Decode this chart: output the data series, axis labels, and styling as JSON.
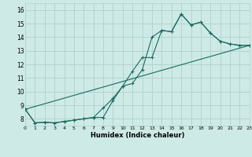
{
  "title": "",
  "xlabel": "Humidex (Indice chaleur)",
  "xlim": [
    0,
    23
  ],
  "ylim": [
    7.5,
    16.5
  ],
  "yticks": [
    8,
    9,
    10,
    11,
    12,
    13,
    14,
    15,
    16
  ],
  "xticks": [
    0,
    1,
    2,
    3,
    4,
    5,
    6,
    7,
    8,
    9,
    10,
    11,
    12,
    13,
    14,
    15,
    16,
    17,
    18,
    19,
    20,
    21,
    22,
    23
  ],
  "bg_color": "#ceeae6",
  "grid_color": "#b2d4d0",
  "line_color": "#1a6b5e",
  "line1_x": [
    0,
    1,
    2,
    3,
    4,
    5,
    6,
    7,
    8,
    9,
    10,
    11,
    12,
    13,
    14,
    15,
    16,
    17,
    18,
    19,
    20,
    21,
    22,
    23
  ],
  "line1_y": [
    8.7,
    7.7,
    7.75,
    7.7,
    7.8,
    7.9,
    8.0,
    8.1,
    8.8,
    9.5,
    10.4,
    11.5,
    12.5,
    12.5,
    14.5,
    14.4,
    15.7,
    14.9,
    15.1,
    14.3,
    13.7,
    13.5,
    13.4,
    13.4
  ],
  "line2_x": [
    0,
    1,
    2,
    3,
    4,
    5,
    6,
    7,
    8,
    9,
    10,
    11,
    12,
    13,
    14,
    15,
    16,
    17,
    18,
    19,
    20,
    21,
    22,
    23
  ],
  "line2_y": [
    8.7,
    7.7,
    7.75,
    7.7,
    7.8,
    7.9,
    8.0,
    8.1,
    8.1,
    9.35,
    10.4,
    10.6,
    11.6,
    14.0,
    14.5,
    14.4,
    15.7,
    14.9,
    15.1,
    14.3,
    13.7,
    13.5,
    13.4,
    13.4
  ],
  "line3_x": [
    0,
    23
  ],
  "line3_y": [
    8.7,
    13.4
  ]
}
